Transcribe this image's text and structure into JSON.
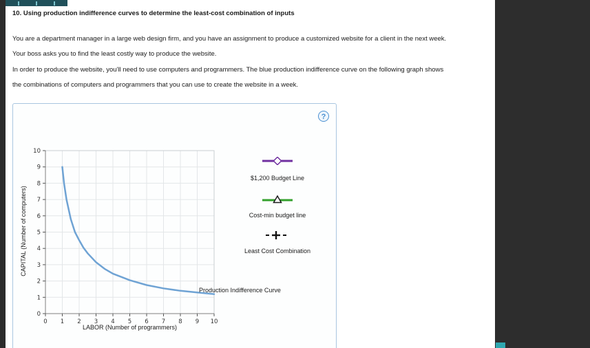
{
  "question": {
    "title": "10. Using production indifference curves to determine the least-cost combination of inputs",
    "para1_lines": [
      "You are a department manager in a large web design firm, and you have an assignment to produce a customized website for a client in the next week.",
      "Your boss asks you to find the least costly way to produce the website."
    ],
    "para2_lines": [
      "In order to produce the website, you'll need to use computers and programmers. The blue production indifference curve on the following graph shows",
      "the combinations of computers and programmers that you can use to create the website in a week."
    ]
  },
  "panel": {
    "help_glyph": "?"
  },
  "legend": {
    "budget_line_label": "$1,200 Budget Line",
    "budget_line_color": "#7030a0",
    "cost_min_label": "Cost-min budget line",
    "cost_min_color": "#33a02c",
    "cost_min_marker_color": "#1d1d1d",
    "least_cost_label": "Least Cost Combination",
    "least_cost_color": "#111111",
    "curve_label": "Production Indifference Curve"
  },
  "chart_data": {
    "type": "line",
    "title": "",
    "xlabel": "LABOR (Number of programmers)",
    "ylabel": "CAPITAL (Number of computers)",
    "xlim": [
      0,
      10
    ],
    "ylim": [
      0,
      10
    ],
    "xticks": [
      0,
      1,
      2,
      3,
      4,
      5,
      6,
      7,
      8,
      9,
      10
    ],
    "yticks": [
      0,
      1,
      2,
      3,
      4,
      5,
      6,
      7,
      8,
      9,
      10
    ],
    "grid": true,
    "series": [
      {
        "name": "Production Indifference Curve",
        "color": "#6fa3d4",
        "points": [
          [
            1,
            9.0
          ],
          [
            1.1,
            8.0
          ],
          [
            1.25,
            7.0
          ],
          [
            1.5,
            5.8
          ],
          [
            1.75,
            5.0
          ],
          [
            2,
            4.5
          ],
          [
            2.25,
            4.05
          ],
          [
            2.5,
            3.7
          ],
          [
            3,
            3.15
          ],
          [
            3.5,
            2.75
          ],
          [
            4,
            2.45
          ],
          [
            4.5,
            2.25
          ],
          [
            5,
            2.05
          ],
          [
            6,
            1.75
          ],
          [
            7,
            1.55
          ],
          [
            8,
            1.4
          ],
          [
            9,
            1.3
          ],
          [
            10,
            1.2
          ]
        ]
      }
    ]
  }
}
